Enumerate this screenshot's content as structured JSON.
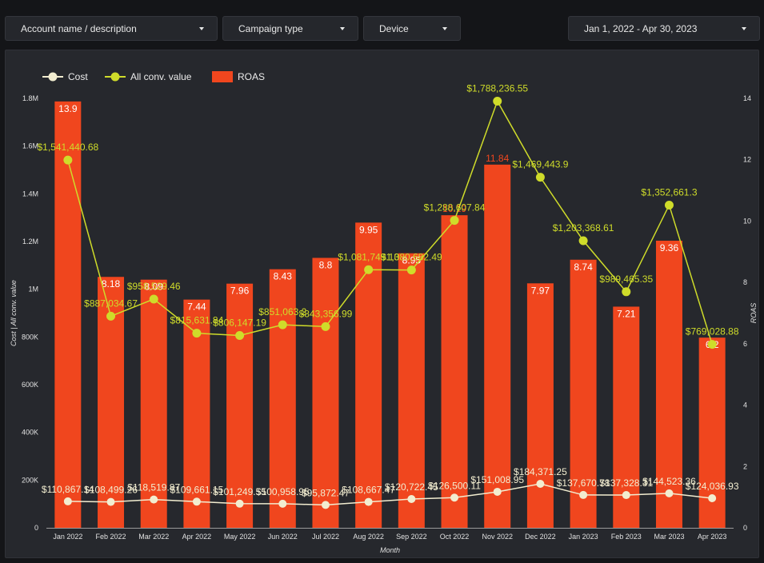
{
  "filters": {
    "account": "Account name / description",
    "campaign_type": "Campaign type",
    "device": "Device",
    "date_range": "Jan 1, 2022 - Apr 30, 2023"
  },
  "colors": {
    "cost": "#f2edd0",
    "conv": "#cfdc2a",
    "roas": "#f0461e",
    "roas_label_highlight": "#f0461e"
  },
  "chart_data": {
    "type": "bar",
    "categories": [
      "Jan 2022",
      "Feb 2022",
      "Mar 2022",
      "Apr 2022",
      "May 2022",
      "Jun 2022",
      "Jul 2022",
      "Aug 2022",
      "Sep 2022",
      "Oct 2022",
      "Nov 2022",
      "Dec 2022",
      "Jan 2023",
      "Feb 2023",
      "Mar 2023",
      "Apr 2023"
    ],
    "xlabel": "Month",
    "ylabel": "Cost | All conv. value",
    "y2label": "ROAS",
    "ylim": [
      0,
      1800000
    ],
    "y2lim": [
      0,
      14
    ],
    "yticks": [
      {
        "v": 0,
        "label": "0"
      },
      {
        "v": 200000,
        "label": "200K"
      },
      {
        "v": 400000,
        "label": "400K"
      },
      {
        "v": 600000,
        "label": "600K"
      },
      {
        "v": 800000,
        "label": "800K"
      },
      {
        "v": 1000000,
        "label": "1M"
      },
      {
        "v": 1200000,
        "label": "1.2M"
      },
      {
        "v": 1400000,
        "label": "1.4M"
      },
      {
        "v": 1600000,
        "label": "1.6M"
      },
      {
        "v": 1800000,
        "label": "1.8M"
      }
    ],
    "y2ticks": [
      {
        "v": 0,
        "label": "0"
      },
      {
        "v": 2,
        "label": "2"
      },
      {
        "v": 4,
        "label": "4"
      },
      {
        "v": 6,
        "label": "6"
      },
      {
        "v": 8,
        "label": "8"
      },
      {
        "v": 10,
        "label": "10"
      },
      {
        "v": 12,
        "label": "12"
      },
      {
        "v": 14,
        "label": "14"
      }
    ],
    "legend_position": "top-left",
    "series": [
      {
        "name": "Cost",
        "type": "line",
        "axis": "left",
        "values": [
          110867.14,
          108499.26,
          118519.87,
          109661.15,
          101249.55,
          100958.95,
          95872.47,
          108667.47,
          120722.45,
          126500.11,
          151008.95,
          184371.25,
          137670.78,
          137328.31,
          144523.36,
          124036.93
        ],
        "labels": [
          "$110,867.14",
          "$108,499.26",
          "$118,519.87",
          "$109,661.15",
          "$101,249.55",
          "$100,958.95",
          "$95,872.47",
          "$108,667.47",
          "$120,722.45",
          "$126,500.11",
          "$151,008.95",
          "$184,371.25",
          "$137,670.78",
          "$137,328.31",
          "$144,523.36",
          "$124,036.93"
        ]
      },
      {
        "name": "All conv. value",
        "type": "line",
        "axis": "left",
        "values": [
          1541440.68,
          887034.67,
          958529.46,
          815631.84,
          806147.19,
          851063.2,
          843356.99,
          1081749.13,
          1080682.49,
          1288607.84,
          1788236.55,
          1469443.9,
          1203368.61,
          989465.35,
          1352661.3,
          769028.88
        ],
        "labels": [
          "$1,541,440.68",
          "$887,034.67",
          "$958,529.46",
          "$815,631.84",
          "$806,147.19",
          "$851,063.2",
          "$843,356.99",
          "$1,081,749.13",
          "$1,080,682.49",
          "$1,288,607.84",
          "$1,788,236.55",
          "$1,469,443.9",
          "$1,203,368.61",
          "$989,465.35",
          "$1,352,661.3",
          "$769,028.88"
        ]
      },
      {
        "name": "ROAS",
        "type": "bar",
        "axis": "right",
        "values": [
          13.9,
          8.18,
          8.09,
          7.44,
          7.96,
          8.43,
          8.8,
          9.95,
          8.95,
          10.19,
          11.84,
          7.97,
          8.74,
          7.21,
          9.36,
          6.2
        ],
        "labels": [
          "13.9",
          "8.18",
          "8.09",
          "7.44",
          "7.96",
          "8.43",
          "8.8",
          "9.95",
          "8.95",
          "10.19",
          "11.84",
          "7.97",
          "8.74",
          "7.21",
          "9.36",
          "6.2"
        ]
      }
    ]
  }
}
